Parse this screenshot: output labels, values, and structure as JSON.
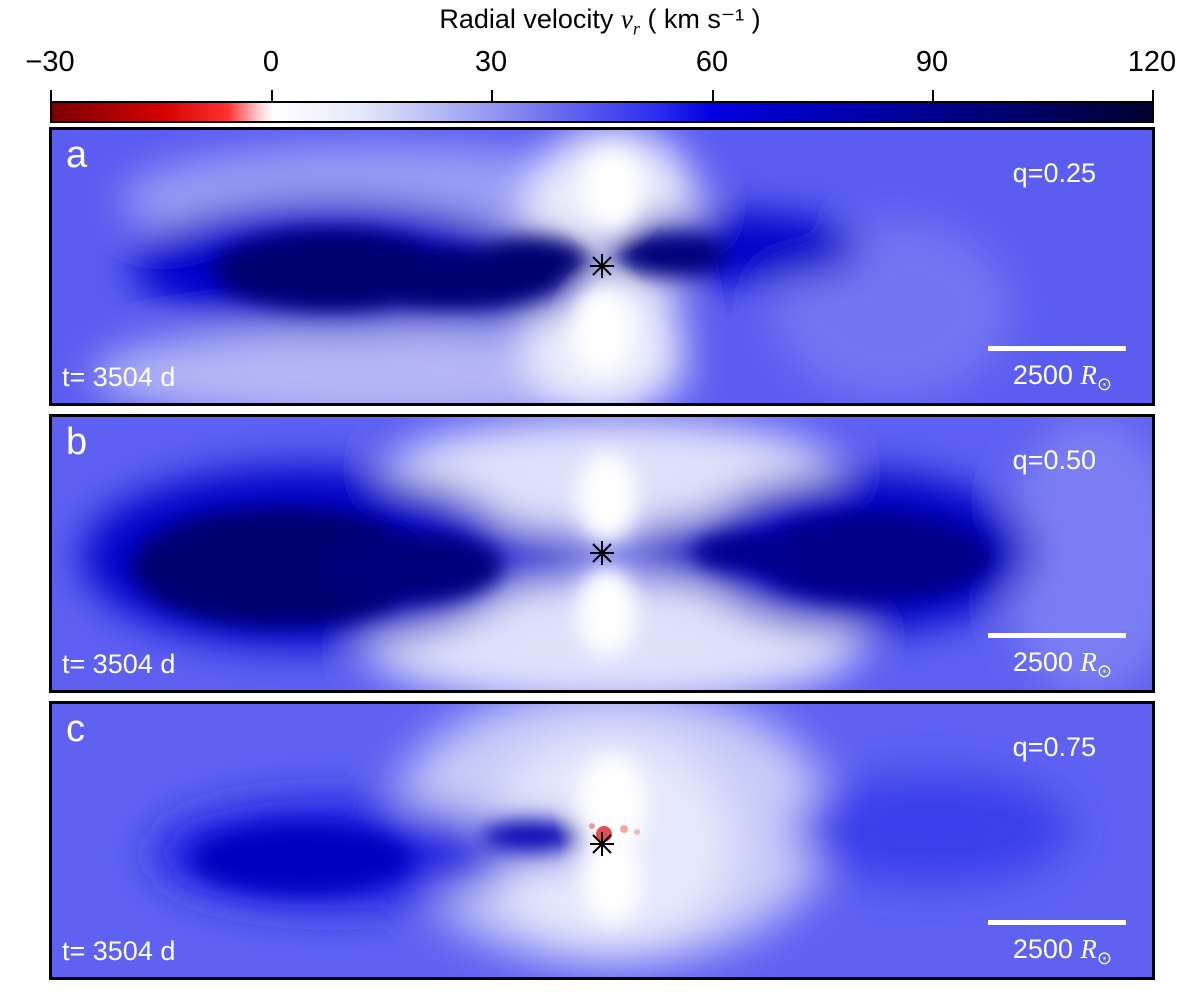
{
  "colorbar": {
    "label": "Radial velocity",
    "symbol": "v",
    "subscript": "r",
    "unit": "( km s⁻¹ )",
    "ticks": [
      "−30",
      "0",
      "30",
      "60",
      "90",
      "120"
    ],
    "range": [
      -30,
      120
    ]
  },
  "panels": [
    {
      "letter": "a",
      "q": "q=0.25",
      "time": "t= 3504 d",
      "scale_value": "2500",
      "scale_symbol": "R",
      "scale_sub": "⊙"
    },
    {
      "letter": "b",
      "q": "q=0.50",
      "time": "t= 3504 d",
      "scale_value": "2500",
      "scale_symbol": "R",
      "scale_sub": "⊙"
    },
    {
      "letter": "c",
      "q": "q=0.75",
      "time": "t= 3504 d",
      "scale_value": "2500",
      "scale_symbol": "R",
      "scale_sub": "⊙"
    }
  ],
  "colors": {
    "background": "#5a5cf0",
    "deep": "#00008a",
    "neutral": "#ffffff",
    "negative": "#e02020"
  }
}
